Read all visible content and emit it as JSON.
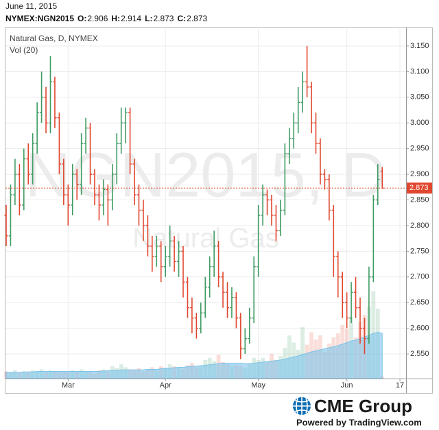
{
  "header": {
    "date": "June 11, 2015",
    "symbol": "NYMEX:NGN2015",
    "ohlc_labels": [
      "O:",
      "H:",
      "L:",
      "C:"
    ]
  },
  "footer": {
    "brand": "CME Group",
    "powered": "Powered by TradingView.com"
  },
  "chart_data": {
    "type": "ohlc",
    "title": "Natural Gas, D, NYMEX",
    "volume_label": "Vol (20)",
    "watermark": "NGN2015, D",
    "watermark_sub": "Natural Gas",
    "categories": [
      null,
      null,
      null,
      null,
      null,
      null,
      null,
      null,
      null,
      null,
      null,
      null,
      null,
      null,
      "Mar",
      null,
      null,
      null,
      null,
      null,
      null,
      null,
      null,
      null,
      null,
      null,
      null,
      null,
      null,
      null,
      null,
      null,
      null,
      null,
      null,
      null,
      "Apr",
      null,
      null,
      null,
      null,
      null,
      null,
      null,
      null,
      null,
      null,
      null,
      null,
      null,
      null,
      null,
      null,
      null,
      null,
      null,
      null,
      "May",
      null,
      null,
      null,
      null,
      null,
      null,
      null,
      null,
      null,
      null,
      null,
      null,
      null,
      null,
      null,
      null,
      null,
      null,
      null,
      "Jun",
      null,
      null,
      null,
      null,
      null,
      null,
      null,
      null,
      null,
      null,
      null,
      "17"
    ],
    "open": [
      2.82,
      2.78,
      2.86,
      2.9,
      2.84,
      2.93,
      2.9,
      2.96,
      3.02,
      3.05,
      3.0,
      3.08,
      3.01,
      2.92,
      2.86,
      2.84,
      2.9,
      2.88,
      2.96,
      2.99,
      2.9,
      2.86,
      2.84,
      2.87,
      2.85,
      2.9,
      2.96,
      3.0,
      3.02,
      2.92,
      2.86,
      2.83,
      2.8,
      2.76,
      2.74,
      2.76,
      2.72,
      2.74,
      2.77,
      2.73,
      2.75,
      2.69,
      2.64,
      2.62,
      2.6,
      2.63,
      2.68,
      2.72,
      2.76,
      2.7,
      2.67,
      2.64,
      2.66,
      2.62,
      2.56,
      2.58,
      2.62,
      2.72,
      2.82,
      2.86,
      2.85,
      2.82,
      2.79,
      2.83,
      2.94,
      2.97,
      3.0,
      3.04,
      3.08,
      3.07,
      3.0,
      2.96,
      2.9,
      2.89,
      2.83,
      2.74,
      2.7,
      2.65,
      2.62,
      2.67,
      2.64,
      2.6,
      2.58,
      2.7,
      2.85,
      2.906,
      null,
      null,
      null,
      null
    ],
    "high": [
      2.84,
      2.88,
      2.93,
      2.92,
      2.95,
      2.96,
      2.98,
      3.04,
      3.1,
      3.07,
      3.13,
      3.09,
      3.02,
      2.93,
      2.88,
      2.92,
      2.91,
      2.98,
      3.01,
      3.0,
      2.91,
      2.88,
      2.89,
      2.88,
      2.92,
      2.98,
      3.03,
      3.03,
      3.03,
      2.93,
      2.88,
      2.85,
      2.82,
      2.78,
      2.78,
      2.77,
      2.76,
      2.8,
      2.78,
      2.77,
      2.76,
      2.7,
      2.66,
      2.63,
      2.65,
      2.7,
      2.74,
      2.79,
      2.77,
      2.71,
      2.69,
      2.68,
      2.67,
      2.63,
      2.6,
      2.64,
      2.74,
      2.84,
      2.88,
      2.87,
      2.86,
      2.84,
      2.85,
      2.96,
      2.99,
      3.02,
      3.07,
      3.1,
      3.15,
      3.08,
      3.02,
      2.97,
      2.91,
      2.9,
      2.84,
      2.75,
      2.71,
      2.67,
      2.69,
      2.7,
      2.66,
      2.62,
      2.72,
      2.86,
      2.92,
      2.914,
      null,
      null,
      null,
      null
    ],
    "low": [
      2.76,
      2.76,
      2.84,
      2.82,
      2.83,
      2.88,
      2.88,
      2.94,
      3.0,
      2.98,
      2.98,
      2.99,
      2.9,
      2.84,
      2.8,
      2.82,
      2.85,
      2.86,
      2.94,
      2.88,
      2.84,
      2.81,
      2.82,
      2.8,
      2.83,
      2.88,
      2.94,
      2.96,
      2.9,
      2.84,
      2.8,
      2.77,
      2.74,
      2.71,
      2.72,
      2.69,
      2.7,
      2.72,
      2.71,
      2.7,
      2.66,
      2.62,
      2.59,
      2.58,
      2.59,
      2.62,
      2.66,
      2.7,
      2.68,
      2.64,
      2.62,
      2.62,
      2.6,
      2.54,
      2.55,
      2.57,
      2.61,
      2.7,
      2.8,
      2.82,
      2.8,
      2.77,
      2.78,
      2.82,
      2.92,
      2.95,
      2.98,
      3.02,
      3.05,
      2.98,
      2.94,
      2.88,
      2.87,
      2.81,
      2.7,
      2.66,
      2.62,
      2.6,
      2.61,
      2.62,
      2.57,
      2.55,
      2.57,
      2.69,
      2.84,
      2.873,
      null,
      null,
      null,
      null
    ],
    "close": [
      2.78,
      2.86,
      2.9,
      2.84,
      2.93,
      2.9,
      2.96,
      3.02,
      3.05,
      3.0,
      3.08,
      3.01,
      2.92,
      2.86,
      2.84,
      2.9,
      2.88,
      2.96,
      2.99,
      2.9,
      2.86,
      2.84,
      2.87,
      2.85,
      2.9,
      2.96,
      3.0,
      3.02,
      2.92,
      2.86,
      2.83,
      2.8,
      2.76,
      2.74,
      2.76,
      2.72,
      2.74,
      2.77,
      2.73,
      2.75,
      2.69,
      2.64,
      2.62,
      2.6,
      2.63,
      2.68,
      2.72,
      2.76,
      2.7,
      2.67,
      2.64,
      2.66,
      2.62,
      2.56,
      2.58,
      2.62,
      2.72,
      2.82,
      2.86,
      2.85,
      2.82,
      2.79,
      2.83,
      2.94,
      2.97,
      3.0,
      3.04,
      3.08,
      3.07,
      3.0,
      2.96,
      2.9,
      2.89,
      2.83,
      2.74,
      2.7,
      2.65,
      2.62,
      2.67,
      2.64,
      2.6,
      2.58,
      2.7,
      2.85,
      2.89,
      2.873,
      null,
      null,
      null,
      null
    ],
    "volume": [
      7,
      6,
      8,
      6,
      7,
      6,
      8,
      7,
      9,
      6,
      8,
      7,
      6,
      7,
      6,
      8,
      7,
      9,
      6,
      7,
      5,
      8,
      9,
      7,
      12,
      10,
      14,
      11,
      9,
      8,
      10,
      7,
      9,
      11,
      8,
      12,
      10,
      14,
      12,
      11,
      9,
      13,
      15,
      11,
      12,
      18,
      20,
      17,
      23,
      16,
      14,
      12,
      13,
      12,
      10,
      15,
      20,
      18,
      20,
      16,
      24,
      18,
      22,
      30,
      42,
      35,
      28,
      50,
      33,
      45,
      38,
      42,
      26,
      34,
      40,
      44,
      52,
      48,
      60,
      40,
      55,
      62,
      70,
      85,
      68,
      2,
      null,
      null,
      null,
      null
    ],
    "volume_ma": [
      6,
      6,
      6,
      6,
      6.5,
      6.5,
      6.5,
      7,
      7,
      7,
      7,
      7,
      7,
      7,
      7,
      7,
      7,
      7,
      7,
      7,
      7,
      7,
      7.5,
      7.5,
      8,
      8,
      8.5,
      8.5,
      8.5,
      8.5,
      8.5,
      8.5,
      9,
      9,
      9,
      9.5,
      10,
      10,
      10.5,
      11,
      11,
      11.5,
      12,
      12,
      12.5,
      13,
      13.5,
      14,
      14.5,
      15,
      15,
      15,
      15,
      15,
      14.5,
      14.5,
      15,
      15.5,
      16,
      16.5,
      17,
      17.5,
      18,
      19,
      20,
      21,
      22,
      23.5,
      24.5,
      26,
      27,
      28,
      29,
      30,
      31,
      32,
      33.5,
      35,
      36.5,
      37.5,
      39,
      40.5,
      42,
      44,
      45,
      44,
      null,
      null,
      null,
      null
    ],
    "vlim": [
      0,
      100
    ],
    "up_color": "#3f9b63",
    "down_color": "#e0472f",
    "volume_ma_color": "#7cc3ea",
    "ylim": [
      2.502,
      3.186
    ],
    "yticks": [
      {
        "value": 2.55,
        "label": "2.550"
      },
      {
        "value": 2.6,
        "label": "2.600"
      },
      {
        "value": 2.65,
        "label": "2.650"
      },
      {
        "value": 2.7,
        "label": "2.700"
      },
      {
        "value": 2.75,
        "label": "2.750"
      },
      {
        "value": 2.8,
        "label": "2.800"
      },
      {
        "value": 2.85,
        "label": "2.850"
      },
      {
        "value": 2.9,
        "label": "2.900"
      },
      {
        "value": 2.95,
        "label": "2.950"
      },
      {
        "value": 3.0,
        "label": "3.000"
      },
      {
        "value": 3.05,
        "label": "3.050"
      },
      {
        "value": 3.1,
        "label": "3.100"
      },
      {
        "value": 3.15,
        "label": "3.150"
      }
    ],
    "grid": true
  }
}
